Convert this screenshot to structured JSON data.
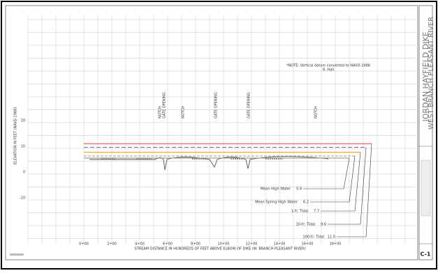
{
  "drawing": {
    "title_block": {
      "line1": "JORDAN HAYFIELD DIKE",
      "line2": "WEST BRANCH PLEASANT RIVER",
      "sheet": "C-1"
    },
    "note": {
      "line1": "*NOTE: Vertical datum converted to NAVD-1988",
      "line2": "R. Hall"
    },
    "y_axis_label": "ELEVATION IN FEET (NAVD-1988)",
    "x_axis_label": "STREAM DISTANCE IN HUNDREDS OF FEET ABOVE ELBOW OF DIKE (W. BRANCH PLEASANT RIVER)",
    "y_tick_labels": [
      "20",
      "10",
      "0",
      "-10"
    ],
    "x_tick_labels": [
      "0+00",
      "2+00",
      "4+00",
      "6+00",
      "8+00",
      "10+00",
      "12+00",
      "14+00",
      "16+00",
      "18+00"
    ],
    "features": [
      [
        "NOTCH",
        "GATE OPENING"
      ],
      [
        "NOTCH"
      ],
      [
        "GATE OPENING"
      ],
      [
        "GATE OPENING"
      ],
      [
        "NOTCH"
      ]
    ],
    "levels": [
      {
        "label": "Mean High Water",
        "value_label": "5.4",
        "value": 5.4,
        "color": "#7a9a5a"
      },
      {
        "label": "Mean Spring High Water",
        "value_label": "6.2",
        "value": 6.2,
        "color": "#999999"
      },
      {
        "label": "1-Yr. Tidal",
        "value_label": "7.7",
        "value": 7.7,
        "color": "#e0a050"
      },
      {
        "label": "10-Yr. Tidal",
        "value_label": "9.6",
        "value": 9.6,
        "color": "#5577cc"
      },
      {
        "label": "100-Yr. Tidal",
        "value_label": "11.0",
        "value": 11.0,
        "color": "#e05050"
      }
    ]
  }
}
